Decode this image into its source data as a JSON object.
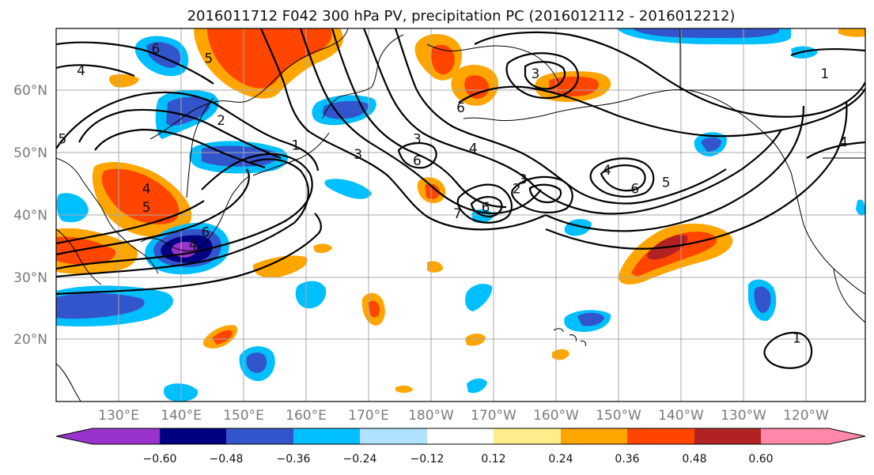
{
  "title": "2016011712 F042 300 hPa PV, precipitation PC (2016012112 - 2016012212)",
  "map": {
    "projection": "cylindrical",
    "lon_ticks": [
      "130°E",
      "140°E",
      "150°E",
      "160°E",
      "170°E",
      "180°W",
      "170°W",
      "160°W",
      "150°W",
      "140°W",
      "130°W",
      "120°W"
    ],
    "lat_ticks": [
      "20°N",
      "30°N",
      "40°N",
      "50°N",
      "60°N"
    ],
    "lon_range": [
      120,
      250
    ],
    "lat_range": [
      10,
      70
    ],
    "grid": true
  },
  "colorbar": {
    "colors": [
      "#9933cc",
      "#000080",
      "#3355cc",
      "#00bfff",
      "#b0e2ff",
      "#ffffff",
      "#ffec8b",
      "#ffa500",
      "#ff4500",
      "#b22222",
      "#ff88aa"
    ],
    "tick_labels": [
      "−0.60",
      "−0.48",
      "−0.36",
      "−0.24",
      "−0.12",
      "0.12",
      "0.24",
      "0.36",
      "0.48",
      "0.60"
    ],
    "extend": "both"
  },
  "pv_contour_labels": [
    {
      "text": "6",
      "lon": 136,
      "lat": 66
    },
    {
      "text": "4",
      "lon": 124,
      "lat": 62.5
    },
    {
      "text": "5",
      "lon": 144.5,
      "lat": 64.5
    },
    {
      "text": "2",
      "lon": 146.5,
      "lat": 54.5
    },
    {
      "text": "1",
      "lon": 158.5,
      "lat": 50.5
    },
    {
      "text": "5",
      "lon": 121,
      "lat": 51.5
    },
    {
      "text": "4",
      "lon": 134.5,
      "lat": 43.5
    },
    {
      "text": "5",
      "lon": 134.5,
      "lat": 40.5
    },
    {
      "text": "6",
      "lon": 144,
      "lat": 36.5
    },
    {
      "text": "4",
      "lon": 142,
      "lat": 34.5
    },
    {
      "text": "3",
      "lon": 168.5,
      "lat": 49
    },
    {
      "text": "3",
      "lon": 178,
      "lat": 51.5
    },
    {
      "text": "6",
      "lon": 178,
      "lat": 48
    },
    {
      "text": "4",
      "lon": 187,
      "lat": 50
    },
    {
      "text": "3",
      "lon": 195,
      "lat": 45
    },
    {
      "text": "2",
      "lon": 194,
      "lat": 43.5
    },
    {
      "text": "6",
      "lon": 189,
      "lat": 40.5
    },
    {
      "text": "7",
      "lon": 184.5,
      "lat": 39.5
    },
    {
      "text": "4",
      "lon": 208.5,
      "lat": 46.5
    },
    {
      "text": "6",
      "lon": 213,
      "lat": 43.5
    },
    {
      "text": "5",
      "lon": 218,
      "lat": 44.5
    },
    {
      "text": "3",
      "lon": 197,
      "lat": 62
    },
    {
      "text": "6",
      "lon": 185,
      "lat": 56.5
    },
    {
      "text": "1",
      "lon": 243.5,
      "lat": 62
    },
    {
      "text": "4",
      "lon": 246.5,
      "lat": 51
    },
    {
      "text": "1",
      "lon": 239,
      "lat": 19.5
    }
  ]
}
